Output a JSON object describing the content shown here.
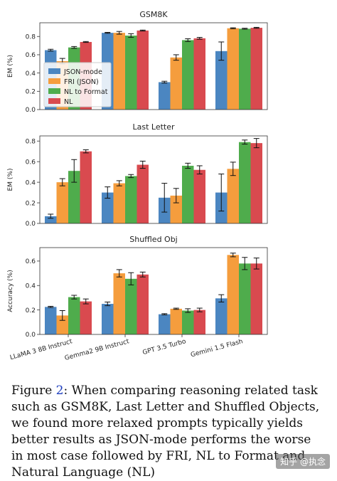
{
  "chart_data": [
    {
      "type": "bar",
      "title": "GSM8K",
      "ylabel": "EM (%)",
      "ylim": [
        0,
        0.95
      ],
      "yticks": [
        0.0,
        0.2,
        0.4,
        0.6,
        0.8
      ],
      "categories": [
        "LLaMA 3 8B Instruct",
        "Gemma2 9B Instruct",
        "GPT 3.5 Turbo",
        "Gemini 1.5 Flash"
      ],
      "series": [
        {
          "name": "JSON-mode",
          "values": [
            0.65,
            0.84,
            0.3,
            0.64
          ],
          "errors": [
            0.01,
            0.005,
            0.01,
            0.1
          ]
        },
        {
          "name": "FRI (JSON)",
          "values": [
            0.53,
            0.84,
            0.57,
            0.89
          ],
          "errors": [
            0.03,
            0.015,
            0.03,
            0.005
          ]
        },
        {
          "name": "NL to Format",
          "values": [
            0.68,
            0.81,
            0.76,
            0.885
          ],
          "errors": [
            0.01,
            0.02,
            0.015,
            0.005
          ]
        },
        {
          "name": "NL",
          "values": [
            0.74,
            0.865,
            0.78,
            0.895
          ],
          "errors": [
            0.005,
            0.005,
            0.01,
            0.005
          ]
        }
      ],
      "legend": "center-left"
    },
    {
      "type": "bar",
      "title": "Last Letter",
      "ylabel": "EM (%)",
      "ylim": [
        0,
        0.85
      ],
      "yticks": [
        0.0,
        0.2,
        0.4,
        0.6,
        0.8
      ],
      "categories": [
        "LLaMA 3 8B Instruct",
        "Gemma2 9B Instruct",
        "GPT 3.5 Turbo",
        "Gemini 1.5 Flash"
      ],
      "series": [
        {
          "name": "JSON-mode",
          "values": [
            0.07,
            0.3,
            0.25,
            0.3
          ],
          "errors": [
            0.02,
            0.055,
            0.14,
            0.18
          ]
        },
        {
          "name": "FRI (JSON)",
          "values": [
            0.4,
            0.39,
            0.27,
            0.53
          ],
          "errors": [
            0.035,
            0.025,
            0.07,
            0.065
          ]
        },
        {
          "name": "NL to Format",
          "values": [
            0.51,
            0.46,
            0.56,
            0.79
          ],
          "errors": [
            0.11,
            0.015,
            0.025,
            0.02
          ]
        },
        {
          "name": "NL",
          "values": [
            0.7,
            0.57,
            0.52,
            0.78
          ],
          "errors": [
            0.015,
            0.035,
            0.04,
            0.045
          ]
        }
      ]
    },
    {
      "type": "bar",
      "title": "Shuffled Obj",
      "ylabel": "Accuracy (%)",
      "ylim": [
        0,
        0.71
      ],
      "yticks": [
        0.0,
        0.2,
        0.4,
        0.6
      ],
      "categories": [
        "LLaMA 3 8B Instruct",
        "Gemma2 9B Instruct",
        "GPT 3.5 Turbo",
        "Gemini 1.5 Flash"
      ],
      "series": [
        {
          "name": "JSON-mode",
          "values": [
            0.225,
            0.25,
            0.165,
            0.295
          ],
          "errors": [
            0.005,
            0.015,
            0.005,
            0.03
          ]
        },
        {
          "name": "FRI (JSON)",
          "values": [
            0.155,
            0.5,
            0.21,
            0.65
          ],
          "errors": [
            0.04,
            0.03,
            0.005,
            0.015
          ]
        },
        {
          "name": "NL to Format",
          "values": [
            0.305,
            0.455,
            0.195,
            0.58
          ],
          "errors": [
            0.015,
            0.05,
            0.015,
            0.05
          ]
        },
        {
          "name": "NL",
          "values": [
            0.27,
            0.49,
            0.2,
            0.58
          ],
          "errors": [
            0.02,
            0.02,
            0.015,
            0.045
          ]
        }
      ]
    }
  ],
  "colors": {
    "series": [
      "#4b86c1",
      "#f59d3d",
      "#4fac4c",
      "#d94a4f"
    ]
  },
  "caption": {
    "label": "Figure ",
    "number": "2",
    "text": ": When comparing reasoning related task such as GSM8K, Last Letter and Shuffled Objects, we found more relaxed prompts typically yields better results as JSON-mode performs the worse in most case followed by FRI, NL to Format and Natural Language (NL)"
  },
  "watermark": "知乎 @执念"
}
